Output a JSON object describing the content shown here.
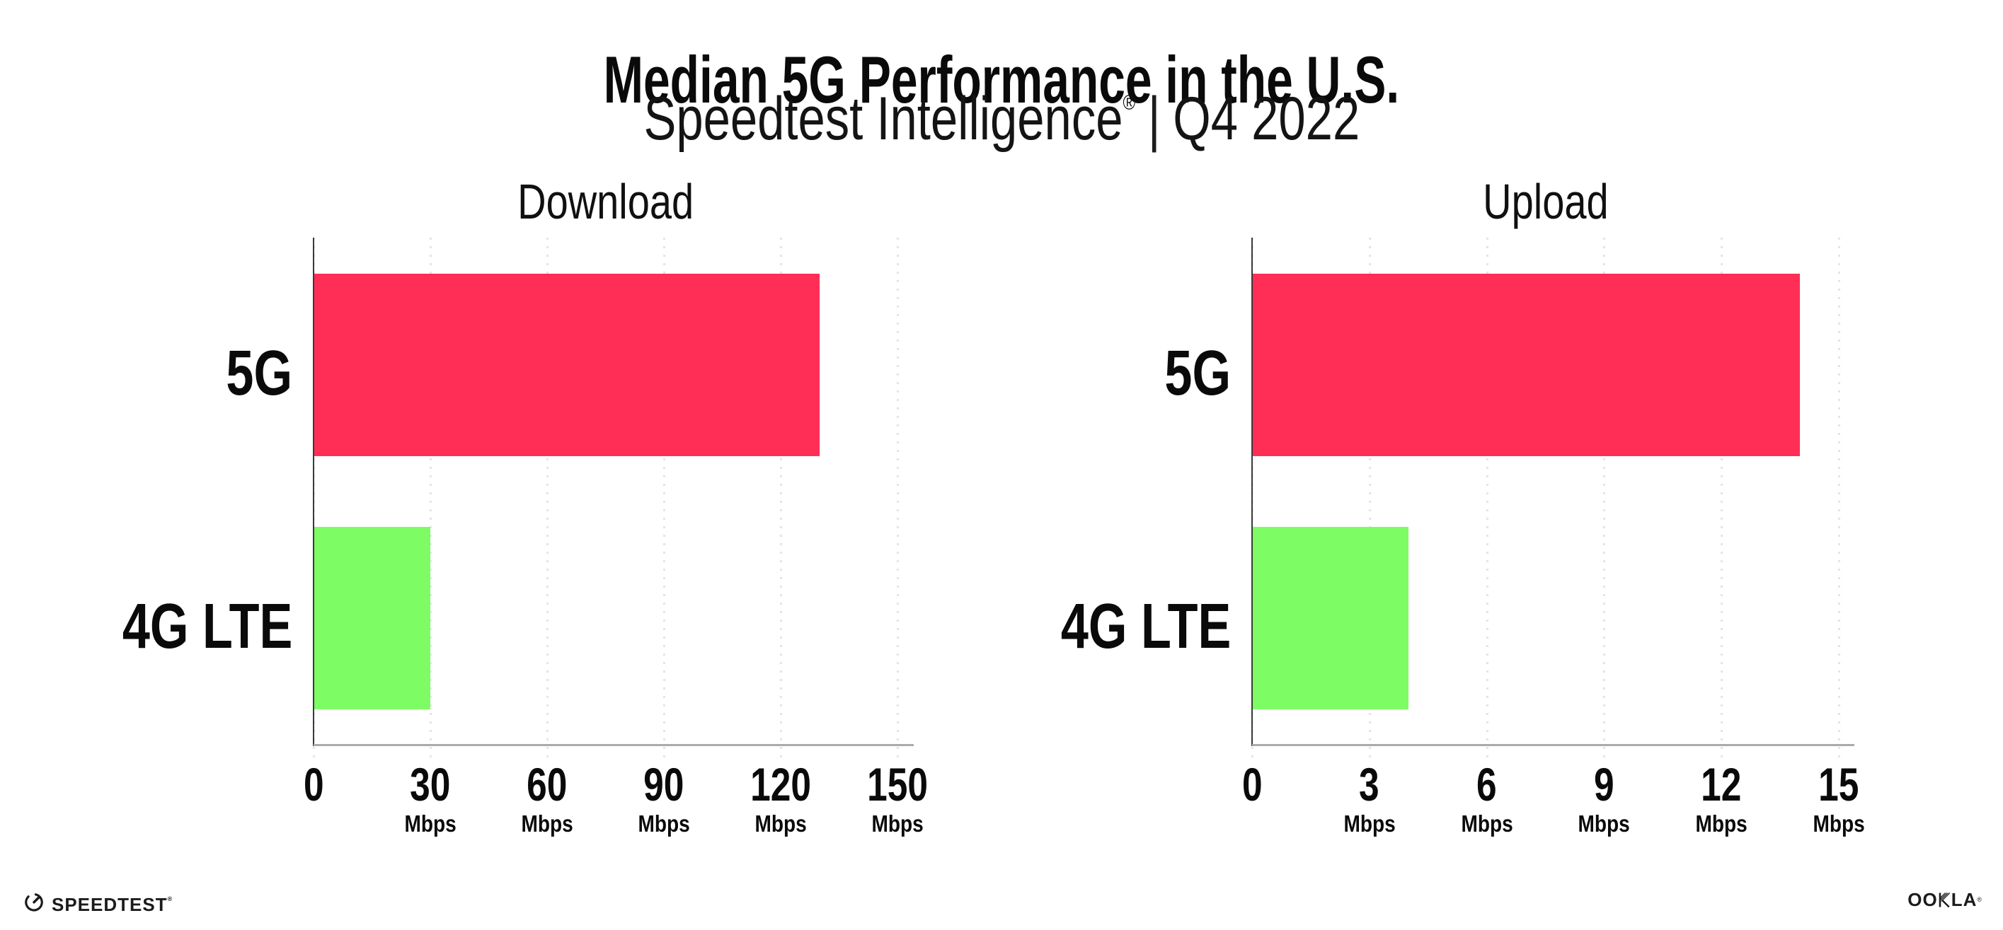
{
  "header": {
    "title": "Median 5G Performance in the U.S.",
    "subtitle_brand": "Speedtest Intelligence",
    "subtitle_reg": "®",
    "subtitle_separator": "|",
    "subtitle_period": "Q4 2022"
  },
  "chart_data": [
    {
      "type": "bar",
      "orientation": "horizontal",
      "title": "Download",
      "categories": [
        "5G",
        "4G LTE"
      ],
      "values": [
        130,
        30
      ],
      "value_unit": "Mbps",
      "xlim": [
        0,
        150
      ],
      "xticks": [
        0,
        30,
        60,
        90,
        120,
        150
      ],
      "tick_unit_label": "Mbps",
      "bar_colors": [
        "#FF2E56",
        "#7DFC64"
      ],
      "grid": "dotted-vertical",
      "legend": "none"
    },
    {
      "type": "bar",
      "orientation": "horizontal",
      "title": "Upload",
      "categories": [
        "5G",
        "4G LTE"
      ],
      "values": [
        14,
        4
      ],
      "value_unit": "Mbps",
      "xlim": [
        0,
        15
      ],
      "xticks": [
        0,
        3,
        6,
        9,
        12,
        15
      ],
      "tick_unit_label": "Mbps",
      "bar_colors": [
        "#FF2E56",
        "#7DFC64"
      ],
      "grid": "dotted-vertical",
      "legend": "none"
    }
  ],
  "colors": {
    "bar_5g": "#FF2E56",
    "bar_4g_lte": "#7DFC64",
    "gridline": "#E3E3F0",
    "x_axis_line": "#ABABAB",
    "y_axis_line": "#3A3A3A",
    "text": "#0B0B0B"
  },
  "footer": {
    "speedtest_icon": "speedtest-gauge-icon",
    "speedtest_label": "SPEEDTEST",
    "speedtest_reg": "®",
    "ookla_left": "OO",
    "ookla_k_icon": "ookla-hatched-k-icon",
    "ookla_right": "LA",
    "ookla_reg": "®"
  }
}
